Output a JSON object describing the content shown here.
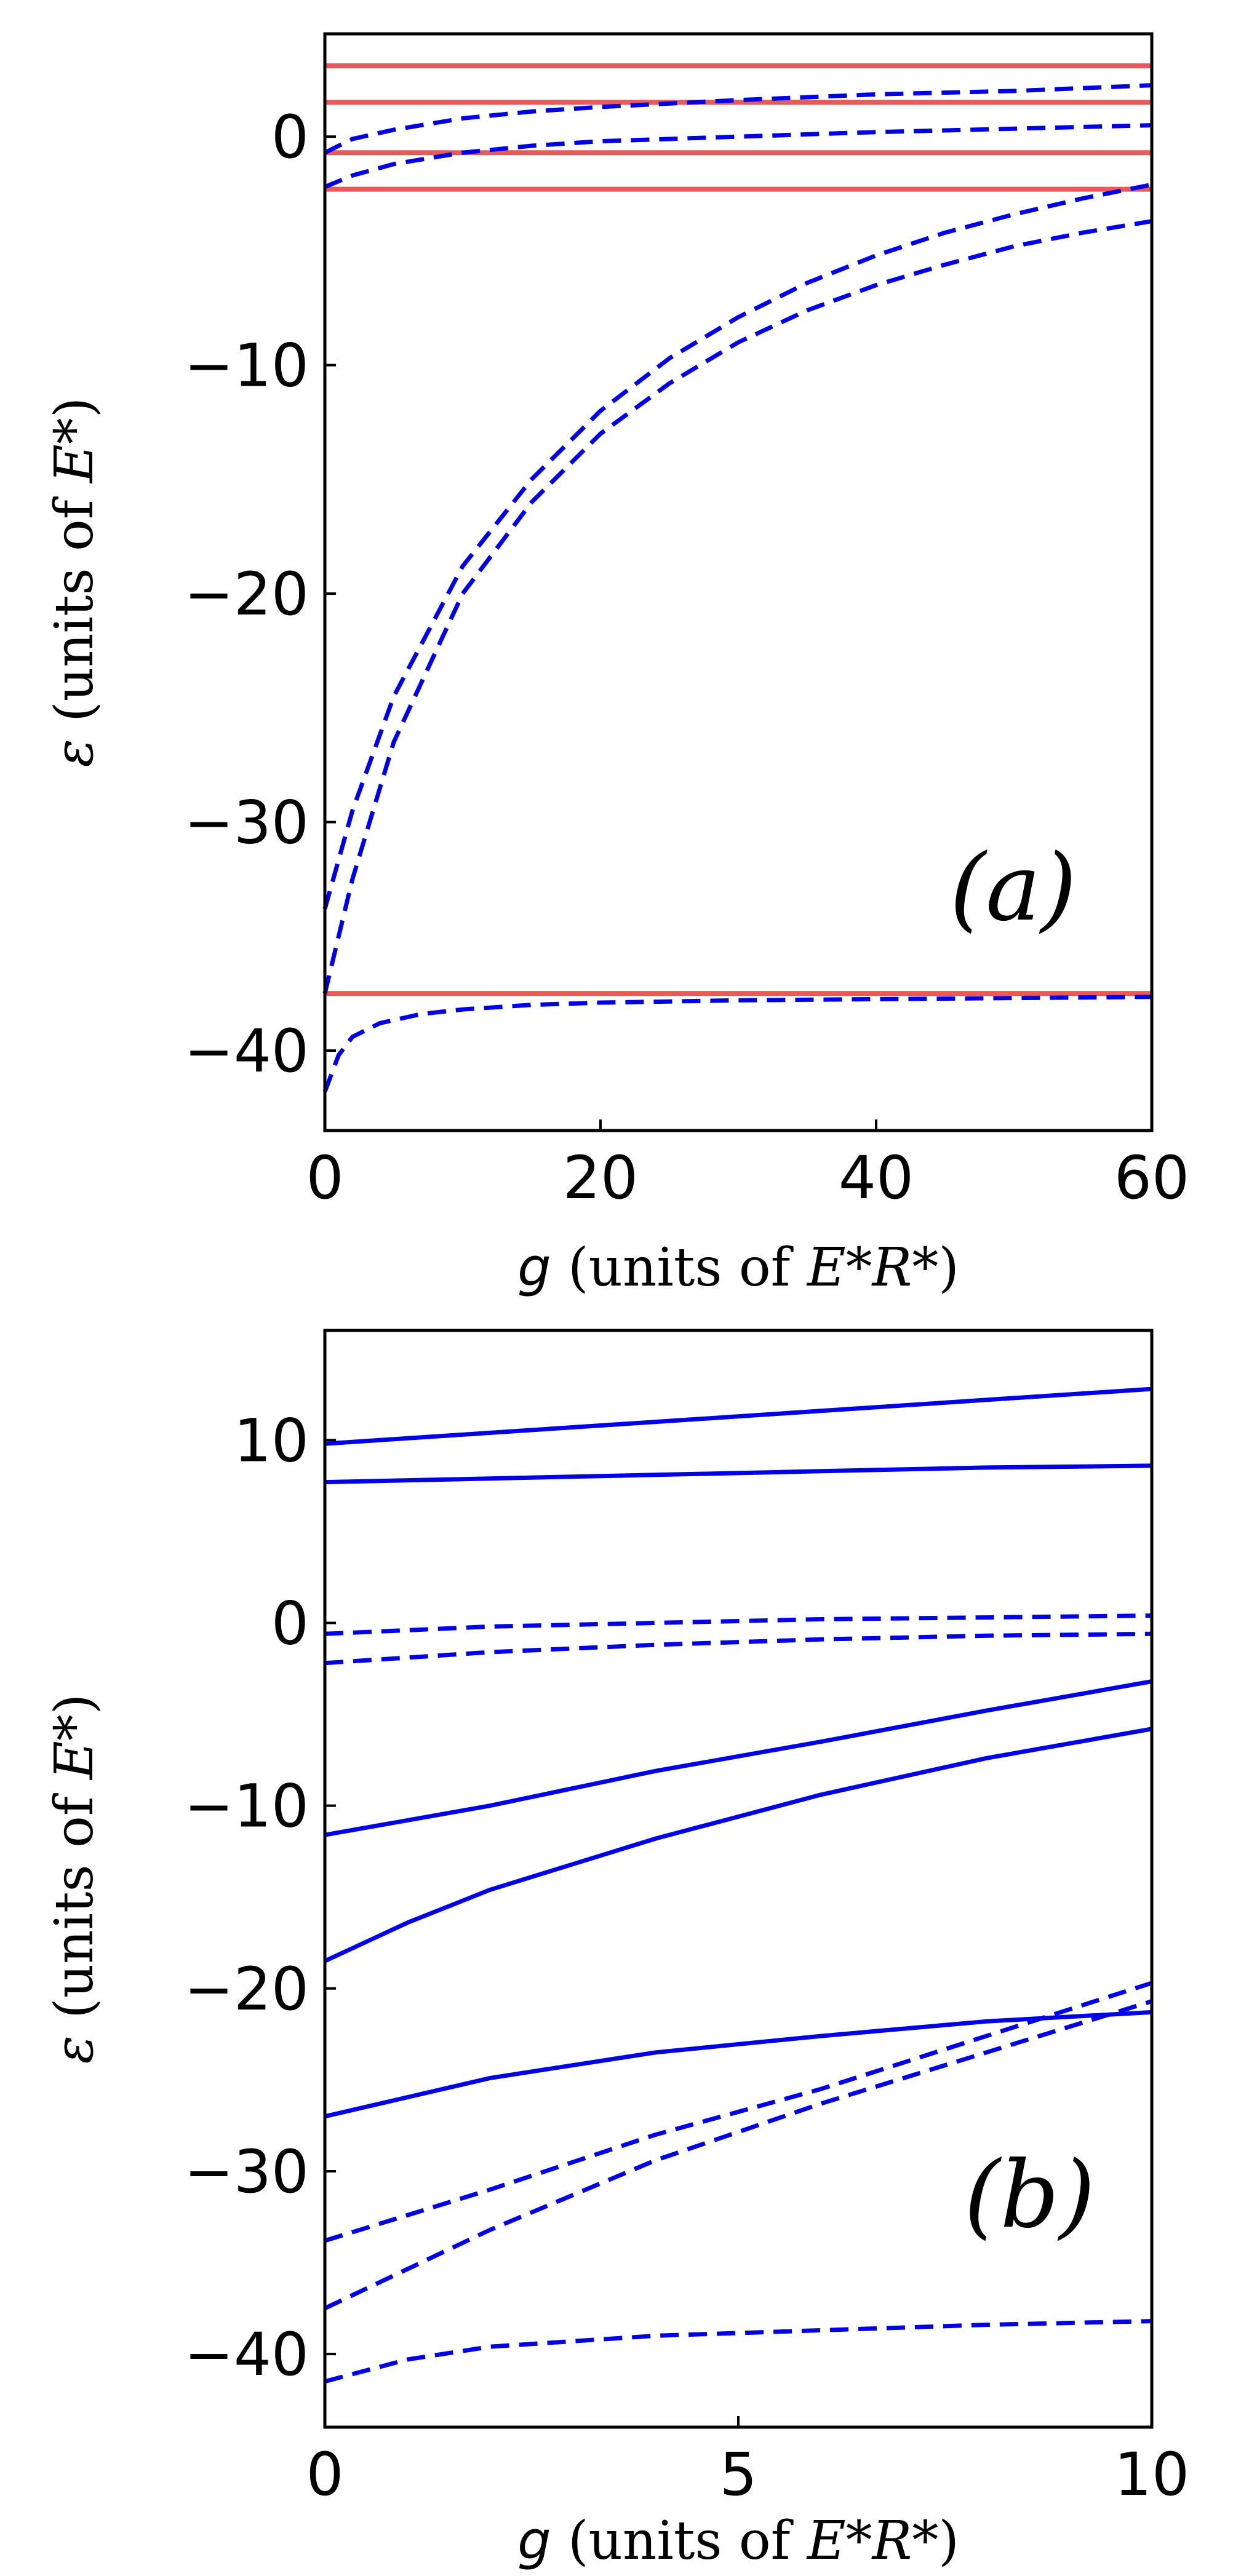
{
  "chart_data": [
    {
      "type": "line",
      "panel_label": "(a)",
      "xlabel": {
        "symbol": "g",
        "text": " (units of ",
        "unit": "E*R*",
        "close": ")"
      },
      "ylabel": {
        "symbol": "ε",
        "text": " (units of ",
        "unit": "E*",
        "close": ")"
      },
      "xlim": [
        0,
        60
      ],
      "ylim": [
        -43.5,
        4.5
      ],
      "xticks": [
        "0",
        "20",
        "40",
        "60"
      ],
      "yticks": [
        "0",
        "−10",
        "−20",
        "−30",
        "−40"
      ],
      "ytick_values": [
        0,
        -10,
        -20,
        -30,
        -40
      ],
      "xtick_values": [
        0,
        20,
        40,
        60
      ],
      "grid": false,
      "legend": "none",
      "colors": {
        "red": "#e85a5a",
        "blue": "#0000e6"
      },
      "series": [
        {
          "color": "red",
          "style": "solid",
          "x": [
            0,
            60
          ],
          "y": [
            3.1,
            3.1
          ]
        },
        {
          "color": "red",
          "style": "solid",
          "x": [
            0,
            60
          ],
          "y": [
            1.5,
            1.5
          ]
        },
        {
          "color": "red",
          "style": "solid",
          "x": [
            0,
            60
          ],
          "y": [
            -0.7,
            -0.7
          ]
        },
        {
          "color": "red",
          "style": "solid",
          "x": [
            0,
            60
          ],
          "y": [
            -2.3,
            -2.3
          ]
        },
        {
          "color": "red",
          "style": "solid",
          "x": [
            0,
            60
          ],
          "y": [
            -37.5,
            -37.5
          ]
        },
        {
          "color": "blue",
          "style": "dashed",
          "x": [
            0,
            2,
            5,
            10,
            15,
            20,
            30,
            40,
            50,
            60
          ],
          "y": [
            -0.7,
            -0.1,
            0.3,
            0.8,
            1.1,
            1.3,
            1.6,
            1.85,
            2.0,
            2.25
          ]
        },
        {
          "color": "blue",
          "style": "dashed",
          "x": [
            0,
            2,
            5,
            10,
            15,
            20,
            30,
            40,
            50,
            60
          ],
          "y": [
            -2.2,
            -1.7,
            -1.2,
            -0.7,
            -0.4,
            -0.2,
            0.0,
            0.2,
            0.35,
            0.5
          ]
        },
        {
          "color": "blue",
          "style": "dashed",
          "x": [
            0,
            2,
            5,
            10,
            15,
            20,
            25,
            30,
            35,
            40,
            45,
            50,
            55,
            60
          ],
          "y": [
            -33.8,
            -29.5,
            -24.5,
            -18.8,
            -15.0,
            -12.0,
            -9.7,
            -7.9,
            -6.4,
            -5.2,
            -4.2,
            -3.4,
            -2.7,
            -2.1
          ]
        },
        {
          "color": "blue",
          "style": "dashed",
          "x": [
            0,
            2,
            5,
            10,
            15,
            20,
            25,
            30,
            35,
            40,
            45,
            50,
            55,
            60
          ],
          "y": [
            -37.5,
            -32.5,
            -26.5,
            -20.0,
            -16.0,
            -13.0,
            -10.8,
            -9.0,
            -7.6,
            -6.5,
            -5.6,
            -4.8,
            -4.2,
            -3.7
          ]
        },
        {
          "color": "blue",
          "style": "dashed",
          "x": [
            0,
            1,
            2,
            4,
            7,
            10,
            15,
            20,
            30,
            40,
            50,
            60
          ],
          "y": [
            -41.8,
            -40.2,
            -39.4,
            -38.8,
            -38.4,
            -38.2,
            -38.0,
            -37.9,
            -37.8,
            -37.75,
            -37.7,
            -37.65
          ]
        }
      ]
    },
    {
      "type": "line",
      "panel_label": "(b)",
      "xlabel": {
        "symbol": "g",
        "text": " (units of ",
        "unit": "E*R*",
        "close": ")"
      },
      "ylabel": {
        "symbol": "ε",
        "text": " (units of ",
        "unit": "E*",
        "close": ")"
      },
      "xlim": [
        0,
        10
      ],
      "ylim": [
        -44,
        16
      ],
      "xticks": [
        "0",
        "5",
        "10"
      ],
      "yticks": [
        "10",
        "0",
        "−10",
        "−20",
        "−30",
        "−40"
      ],
      "ytick_values": [
        10,
        0,
        -10,
        -20,
        -30,
        -40
      ],
      "xtick_values": [
        0,
        5,
        10
      ],
      "grid": false,
      "legend": "none",
      "colors": {
        "blue": "#0000e6"
      },
      "series": [
        {
          "color": "blue",
          "style": "solid",
          "x": [
            0,
            2,
            4,
            6,
            8,
            10
          ],
          "y": [
            9.8,
            10.4,
            11.0,
            11.6,
            12.2,
            12.8
          ]
        },
        {
          "color": "blue",
          "style": "solid",
          "x": [
            0,
            2,
            4,
            6,
            8,
            10
          ],
          "y": [
            7.7,
            7.9,
            8.1,
            8.3,
            8.5,
            8.6
          ]
        },
        {
          "color": "blue",
          "style": "dashed",
          "x": [
            0,
            2,
            4,
            6,
            8,
            10
          ],
          "y": [
            -0.6,
            -0.2,
            0.0,
            0.2,
            0.3,
            0.4
          ]
        },
        {
          "color": "blue",
          "style": "dashed",
          "x": [
            0,
            2,
            4,
            6,
            8,
            10
          ],
          "y": [
            -2.2,
            -1.6,
            -1.2,
            -0.9,
            -0.7,
            -0.6
          ]
        },
        {
          "color": "blue",
          "style": "solid",
          "x": [
            0,
            2,
            4,
            6,
            8,
            10
          ],
          "y": [
            -11.6,
            -10.0,
            -8.1,
            -6.5,
            -4.8,
            -3.2
          ]
        },
        {
          "color": "blue",
          "style": "solid",
          "x": [
            0,
            1,
            2,
            4,
            6,
            8,
            10
          ],
          "y": [
            -18.5,
            -16.4,
            -14.6,
            -11.8,
            -9.4,
            -7.4,
            -5.8
          ]
        },
        {
          "color": "blue",
          "style": "solid",
          "x": [
            0,
            2,
            4,
            6,
            8,
            10
          ],
          "y": [
            -27.0,
            -24.9,
            -23.5,
            -22.6,
            -21.8,
            -21.3
          ]
        },
        {
          "color": "blue",
          "style": "dashed",
          "x": [
            0,
            2,
            4,
            6,
            8,
            10
          ],
          "y": [
            -33.8,
            -31.0,
            -28.0,
            -25.5,
            -22.6,
            -19.7
          ]
        },
        {
          "color": "blue",
          "style": "dashed",
          "x": [
            0,
            2,
            4,
            6,
            8,
            10
          ],
          "y": [
            -37.5,
            -33.2,
            -29.4,
            -26.3,
            -23.5,
            -20.7
          ]
        },
        {
          "color": "blue",
          "style": "dashed",
          "x": [
            0,
            1,
            2,
            4,
            6,
            8,
            10
          ],
          "y": [
            -41.5,
            -40.3,
            -39.6,
            -39.0,
            -38.7,
            -38.4,
            -38.2
          ]
        }
      ]
    }
  ]
}
